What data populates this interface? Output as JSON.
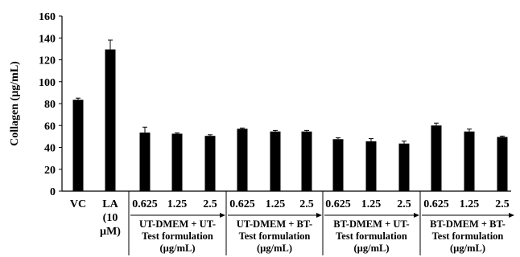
{
  "chart_data": {
    "type": "bar",
    "ylabel": "Collagen (µg/mL)",
    "ylim": [
      0,
      160
    ],
    "yticks": [
      "0",
      "20",
      "40",
      "60",
      "80",
      "100",
      "120",
      "140",
      "160"
    ],
    "grid": false,
    "categories": [
      "VC",
      "LA (10 µM)",
      "0.625",
      "1.25",
      "2.5",
      "0.625",
      "1.25",
      "2.5",
      "0.625",
      "1.25",
      "2.5",
      "0.625",
      "1.25",
      "2.5"
    ],
    "category_label_lines": [
      [
        "VC"
      ],
      [
        "LA",
        "(10",
        "µM)"
      ],
      [
        "0.625"
      ],
      [
        "1.25"
      ],
      [
        "2.5"
      ],
      [
        "0.625"
      ],
      [
        "1.25"
      ],
      [
        "2.5"
      ],
      [
        "0.625"
      ],
      [
        "1.25"
      ],
      [
        "2.5"
      ],
      [
        "0.625"
      ],
      [
        "1.25"
      ],
      [
        "2.5"
      ]
    ],
    "values": [
      83.5,
      129.5,
      53.5,
      52.5,
      50.5,
      57,
      54.5,
      54.5,
      47.5,
      45.5,
      43.5,
      60,
      54.5,
      49.5
    ],
    "errors": [
      1.5,
      8.5,
      5,
      0.7,
      1,
      0.7,
      1,
      1,
      1.2,
      2.5,
      2.2,
      2.2,
      2.2,
      0.8
    ],
    "bar_color": "#000000",
    "groups": [
      {
        "lines": [
          "UT-DMEM + UT-",
          "Test formulation",
          "(µg/mL)"
        ],
        "bars": [
          2,
          3,
          4
        ]
      },
      {
        "lines": [
          "UT-DMEM + BT-",
          "Test formulation",
          "(µg/mL)"
        ],
        "bars": [
          5,
          6,
          7
        ]
      },
      {
        "lines": [
          "BT-DMEM + UT-",
          "Test formulation",
          "(µg/mL)"
        ],
        "bars": [
          8,
          9,
          10
        ]
      },
      {
        "lines": [
          "BT-DMEM + BT-",
          "Test formulation",
          "(µg/mL)"
        ],
        "bars": [
          11,
          12,
          13
        ]
      }
    ]
  }
}
